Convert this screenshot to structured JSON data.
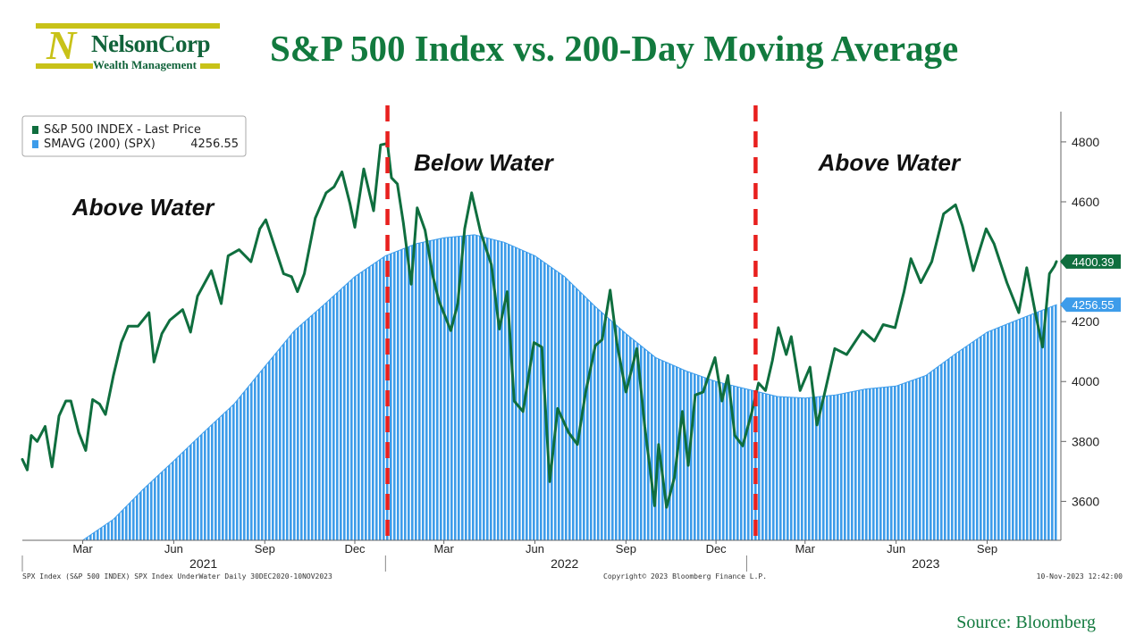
{
  "logo": {
    "mark": "N",
    "name": "NelsonCorp",
    "subtitle": "Wealth Management"
  },
  "title": "S&P 500 Index vs. 200-Day Moving Average",
  "source": "Source: Bloomberg",
  "colors": {
    "price_line": "#0f6e3e",
    "sma_fill": "#3d9cea",
    "divider": "#e8201e",
    "title": "#127a3e"
  },
  "chart_data": {
    "type": "line",
    "x_start": "2020-12-30",
    "x_end": "2023-11-10",
    "ylim": [
      3470,
      4910
    ],
    "y_ticks": [
      3600,
      3800,
      4000,
      4200,
      4400,
      4600,
      4800
    ],
    "legend": {
      "placement": "top-left",
      "price_label": "S&P 500 INDEX - Last Price",
      "sma_label": "SMAVG (200) (SPX)",
      "sma_value": "4256.55"
    },
    "last_labels": {
      "price": "4400.39",
      "sma": "4256.55"
    },
    "month_ticks": [
      {
        "label": "Mar",
        "date": "2021-03-01"
      },
      {
        "label": "Jun",
        "date": "2021-06-01"
      },
      {
        "label": "Sep",
        "date": "2021-09-01"
      },
      {
        "label": "Dec",
        "date": "2021-12-01"
      },
      {
        "label": "Mar",
        "date": "2022-03-01"
      },
      {
        "label": "Jun",
        "date": "2022-06-01"
      },
      {
        "label": "Sep",
        "date": "2022-09-01"
      },
      {
        "label": "Dec",
        "date": "2022-12-01"
      },
      {
        "label": "Mar",
        "date": "2023-03-01"
      },
      {
        "label": "Jun",
        "date": "2023-06-01"
      },
      {
        "label": "Sep",
        "date": "2023-09-01"
      }
    ],
    "year_ticks": [
      {
        "label": "2021",
        "date": "2021-07-01"
      },
      {
        "label": "2022",
        "date": "2022-07-01"
      },
      {
        "label": "2023",
        "date": "2023-07-01"
      }
    ],
    "year_separators": [
      "2022-01-01",
      "2023-01-01"
    ],
    "dividers": [
      "2022-01-03",
      "2023-01-10"
    ],
    "annotations": [
      {
        "text": "Above Water",
        "date": "2021-05-01",
        "value": 4555
      },
      {
        "text": "Below Water",
        "date": "2022-04-10",
        "value": 4705
      },
      {
        "text": "Above Water",
        "date": "2023-05-25",
        "value": 4705
      }
    ],
    "footer": {
      "left": "SPX Index (S&P 500 INDEX) SPX Index UnderWater  Daily 30DEC2020-10NOV2023",
      "center": "Copyright© 2023 Bloomberg Finance L.P.",
      "right": "10-Nov-2023 12:42:00"
    },
    "series": [
      {
        "name": "S&P 500 INDEX - Last Price",
        "points": [
          [
            "2020-12-30",
            3740
          ],
          [
            "2021-01-04",
            3705
          ],
          [
            "2021-01-08",
            3820
          ],
          [
            "2021-01-14",
            3800
          ],
          [
            "2021-01-22",
            3850
          ],
          [
            "2021-01-29",
            3715
          ],
          [
            "2021-02-05",
            3885
          ],
          [
            "2021-02-12",
            3935
          ],
          [
            "2021-02-17",
            3935
          ],
          [
            "2021-02-25",
            3830
          ],
          [
            "2021-03-04",
            3770
          ],
          [
            "2021-03-11",
            3940
          ],
          [
            "2021-03-18",
            3925
          ],
          [
            "2021-03-24",
            3890
          ],
          [
            "2021-04-01",
            4020
          ],
          [
            "2021-04-09",
            4130
          ],
          [
            "2021-04-16",
            4185
          ],
          [
            "2021-04-26",
            4185
          ],
          [
            "2021-05-07",
            4230
          ],
          [
            "2021-05-12",
            4065
          ],
          [
            "2021-05-20",
            4160
          ],
          [
            "2021-05-28",
            4205
          ],
          [
            "2021-06-10",
            4240
          ],
          [
            "2021-06-18",
            4165
          ],
          [
            "2021-06-25",
            4285
          ],
          [
            "2021-07-09",
            4370
          ],
          [
            "2021-07-19",
            4260
          ],
          [
            "2021-07-26",
            4420
          ],
          [
            "2021-08-06",
            4440
          ],
          [
            "2021-08-18",
            4400
          ],
          [
            "2021-08-27",
            4510
          ],
          [
            "2021-09-02",
            4540
          ],
          [
            "2021-09-10",
            4460
          ],
          [
            "2021-09-20",
            4360
          ],
          [
            "2021-09-28",
            4350
          ],
          [
            "2021-10-04",
            4300
          ],
          [
            "2021-10-11",
            4360
          ],
          [
            "2021-10-22",
            4545
          ],
          [
            "2021-11-02",
            4630
          ],
          [
            "2021-11-10",
            4650
          ],
          [
            "2021-11-18",
            4700
          ],
          [
            "2021-11-26",
            4595
          ],
          [
            "2021-12-01",
            4515
          ],
          [
            "2021-12-10",
            4710
          ],
          [
            "2021-12-20",
            4570
          ],
          [
            "2021-12-27",
            4790
          ],
          [
            "2022-01-03",
            4795
          ],
          [
            "2022-01-07",
            4680
          ],
          [
            "2022-01-13",
            4660
          ],
          [
            "2022-01-19",
            4530
          ],
          [
            "2022-01-27",
            4325
          ],
          [
            "2022-02-02",
            4580
          ],
          [
            "2022-02-10",
            4505
          ],
          [
            "2022-02-18",
            4350
          ],
          [
            "2022-02-24",
            4270
          ],
          [
            "2022-03-08",
            4170
          ],
          [
            "2022-03-15",
            4260
          ],
          [
            "2022-03-22",
            4510
          ],
          [
            "2022-03-29",
            4630
          ],
          [
            "2022-04-07",
            4500
          ],
          [
            "2022-04-18",
            4390
          ],
          [
            "2022-04-26",
            4175
          ],
          [
            "2022-05-04",
            4300
          ],
          [
            "2022-05-11",
            3935
          ],
          [
            "2022-05-20",
            3900
          ],
          [
            "2022-05-31",
            4130
          ],
          [
            "2022-06-08",
            4115
          ],
          [
            "2022-06-16",
            3666
          ],
          [
            "2022-06-24",
            3910
          ],
          [
            "2022-07-05",
            3830
          ],
          [
            "2022-07-14",
            3790
          ],
          [
            "2022-07-22",
            3960
          ],
          [
            "2022-08-01",
            4120
          ],
          [
            "2022-08-08",
            4140
          ],
          [
            "2022-08-16",
            4305
          ],
          [
            "2022-08-23",
            4125
          ],
          [
            "2022-09-01",
            3965
          ],
          [
            "2022-09-12",
            4110
          ],
          [
            "2022-09-20",
            3850
          ],
          [
            "2022-09-30",
            3585
          ],
          [
            "2022-10-04",
            3790
          ],
          [
            "2022-10-12",
            3580
          ],
          [
            "2022-10-20",
            3680
          ],
          [
            "2022-10-28",
            3900
          ],
          [
            "2022-11-03",
            3720
          ],
          [
            "2022-11-10",
            3955
          ],
          [
            "2022-11-18",
            3965
          ],
          [
            "2022-11-30",
            4080
          ],
          [
            "2022-12-07",
            3935
          ],
          [
            "2022-12-13",
            4020
          ],
          [
            "2022-12-20",
            3820
          ],
          [
            "2022-12-28",
            3785
          ],
          [
            "2023-01-06",
            3895
          ],
          [
            "2023-01-13",
            3995
          ],
          [
            "2023-01-20",
            3970
          ],
          [
            "2023-01-27",
            4070
          ],
          [
            "2023-02-02",
            4180
          ],
          [
            "2023-02-10",
            4090
          ],
          [
            "2023-02-15",
            4150
          ],
          [
            "2023-02-24",
            3970
          ],
          [
            "2023-03-06",
            4048
          ],
          [
            "2023-03-13",
            3855
          ],
          [
            "2023-03-20",
            3950
          ],
          [
            "2023-03-31",
            4110
          ],
          [
            "2023-04-12",
            4090
          ],
          [
            "2023-04-28",
            4170
          ],
          [
            "2023-05-10",
            4135
          ],
          [
            "2023-05-19",
            4190
          ],
          [
            "2023-05-31",
            4180
          ],
          [
            "2023-06-09",
            4300
          ],
          [
            "2023-06-16",
            4410
          ],
          [
            "2023-06-26",
            4330
          ],
          [
            "2023-07-07",
            4400
          ],
          [
            "2023-07-19",
            4560
          ],
          [
            "2023-07-31",
            4590
          ],
          [
            "2023-08-07",
            4520
          ],
          [
            "2023-08-18",
            4370
          ],
          [
            "2023-08-31",
            4510
          ],
          [
            "2023-09-08",
            4460
          ],
          [
            "2023-09-21",
            4330
          ],
          [
            "2023-10-03",
            4230
          ],
          [
            "2023-10-11",
            4380
          ],
          [
            "2023-10-20",
            4225
          ],
          [
            "2023-10-27",
            4115
          ],
          [
            "2023-11-03",
            4360
          ],
          [
            "2023-11-08",
            4385
          ],
          [
            "2023-11-10",
            4400.39
          ]
        ]
      },
      {
        "name": "SMAVG (200) (SPX)",
        "points": [
          [
            "2021-03-01",
            3470
          ],
          [
            "2021-04-01",
            3540
          ],
          [
            "2021-05-01",
            3640
          ],
          [
            "2021-06-01",
            3735
          ],
          [
            "2021-07-01",
            3830
          ],
          [
            "2021-08-01",
            3925
          ],
          [
            "2021-09-01",
            4050
          ],
          [
            "2021-10-01",
            4170
          ],
          [
            "2021-11-01",
            4260
          ],
          [
            "2021-12-01",
            4350
          ],
          [
            "2022-01-01",
            4420
          ],
          [
            "2022-02-01",
            4460
          ],
          [
            "2022-03-01",
            4480
          ],
          [
            "2022-04-01",
            4490
          ],
          [
            "2022-05-01",
            4465
          ],
          [
            "2022-06-01",
            4420
          ],
          [
            "2022-07-01",
            4350
          ],
          [
            "2022-08-01",
            4250
          ],
          [
            "2022-09-01",
            4160
          ],
          [
            "2022-10-01",
            4080
          ],
          [
            "2022-11-01",
            4035
          ],
          [
            "2022-12-01",
            4000
          ],
          [
            "2023-01-01",
            3975
          ],
          [
            "2023-02-01",
            3950
          ],
          [
            "2023-03-01",
            3945
          ],
          [
            "2023-04-01",
            3955
          ],
          [
            "2023-05-01",
            3975
          ],
          [
            "2023-06-01",
            3985
          ],
          [
            "2023-07-01",
            4020
          ],
          [
            "2023-08-01",
            4095
          ],
          [
            "2023-09-01",
            4165
          ],
          [
            "2023-10-01",
            4205
          ],
          [
            "2023-11-10",
            4256.55
          ]
        ]
      }
    ]
  }
}
